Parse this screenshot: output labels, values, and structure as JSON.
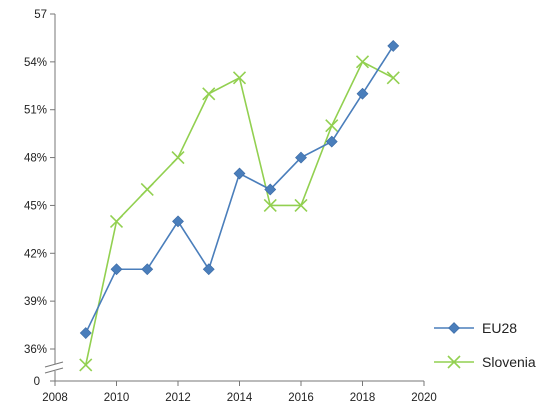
{
  "chart_data": {
    "type": "line",
    "title": "",
    "xlabel": "",
    "ylabel": "",
    "x_ticks": [
      2008,
      2010,
      2012,
      2014,
      2016,
      2018,
      2020
    ],
    "xlim": [
      2008,
      2020
    ],
    "y_ticks": [
      36,
      39,
      42,
      45,
      48,
      51,
      54,
      57
    ],
    "y_tick_labels": [
      "36%",
      "39%",
      "42%",
      "45%",
      "48%",
      "51%",
      "54%",
      "57"
    ],
    "ylim": [
      36,
      57
    ],
    "y_axis_break": true,
    "y_axis_origin_label": "0",
    "grid": false,
    "legend_position": "bottom-right",
    "series": [
      {
        "name": "EU28",
        "color": "#4a7ebb",
        "marker": "diamond",
        "x": [
          2009,
          2010,
          2011,
          2012,
          2013,
          2014,
          2015,
          2016,
          2017,
          2018,
          2019
        ],
        "values": [
          37,
          41,
          41,
          44,
          41,
          47,
          46,
          48,
          49,
          52,
          55
        ]
      },
      {
        "name": "Slovenia",
        "color": "#92d050",
        "marker": "x",
        "x": [
          2009,
          2010,
          2011,
          2012,
          2013,
          2014,
          2015,
          2016,
          2017,
          2018,
          2019
        ],
        "values": [
          35,
          44,
          46,
          48,
          52,
          53,
          45,
          45,
          50,
          54,
          53
        ]
      }
    ]
  }
}
